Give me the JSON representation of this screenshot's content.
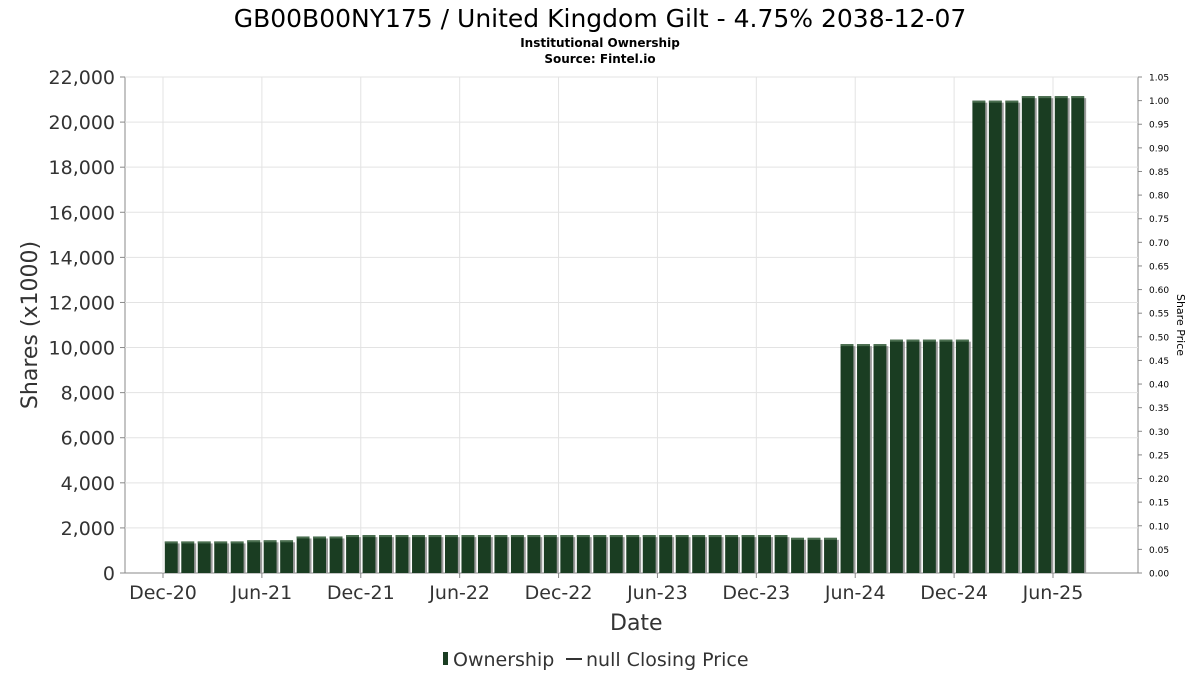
{
  "chart_data": {
    "type": "bar",
    "title": "GB00B00NY175 / United Kingdom Gilt - 4.75% 2038-12-07",
    "subtitle": "Institutional Ownership",
    "source": "Source: Fintel.io",
    "xlabel": "Date",
    "ylabel": "Shares (x1000)",
    "y2label": "Share Price",
    "ylim": [
      0,
      22000
    ],
    "y_ticks": [
      "0",
      "2,000",
      "4,000",
      "6,000",
      "8,000",
      "10,000",
      "12,000",
      "14,000",
      "16,000",
      "18,000",
      "20,000",
      "22,000"
    ],
    "y2lim": [
      0,
      1.05
    ],
    "y2_ticks": [
      "0.00",
      "0.05",
      "0.10",
      "0.15",
      "0.20",
      "0.25",
      "0.30",
      "0.35",
      "0.40",
      "0.45",
      "0.50",
      "0.55",
      "0.60",
      "0.65",
      "0.70",
      "0.75",
      "0.80",
      "0.85",
      "0.90",
      "0.95",
      "1.00",
      "1.05"
    ],
    "x_ticks": [
      "Dec-20",
      "Jun-21",
      "Dec-21",
      "Jun-22",
      "Dec-22",
      "Jun-23",
      "Dec-23",
      "Jun-24",
      "Dec-24",
      "Jun-25"
    ],
    "x_tick_month_index": [
      0,
      6,
      12,
      18,
      24,
      30,
      36,
      42,
      48,
      54
    ],
    "x_month_range": [
      0,
      58
    ],
    "bar_month_index": [
      0.5,
      1.5,
      2.5,
      3.5,
      4.5,
      5.5,
      6.5,
      7.5,
      8.5,
      9.5,
      10.5,
      11.5,
      12.5,
      13.5,
      14.5,
      15.5,
      16.5,
      17.5,
      18.5,
      19.5,
      20.5,
      21.5,
      22.5,
      23.5,
      24.5,
      25.5,
      26.5,
      27.5,
      28.5,
      29.5,
      30.5,
      31.5,
      32.5,
      33.5,
      34.5,
      35.5,
      36.5,
      37.5,
      38.5,
      39.5,
      40.5,
      41.5,
      42.5,
      43.5,
      44.5,
      45.5,
      46.5,
      47.5,
      48.5,
      49.5,
      50.5,
      51.5,
      52.5,
      53.5,
      54.5,
      55.5
    ],
    "series": [
      {
        "name": "Ownership",
        "color": "#1a3d22",
        "values": [
          1400,
          1400,
          1400,
          1400,
          1400,
          1450,
          1450,
          1450,
          1620,
          1620,
          1620,
          1680,
          1680,
          1680,
          1680,
          1680,
          1680,
          1680,
          1680,
          1680,
          1680,
          1680,
          1680,
          1680,
          1680,
          1680,
          1680,
          1680,
          1680,
          1680,
          1680,
          1680,
          1680,
          1680,
          1680,
          1680,
          1680,
          1680,
          1560,
          1560,
          1560,
          10150,
          10150,
          10150,
          10350,
          10350,
          10350,
          10350,
          10350,
          20950,
          20950,
          20950,
          21150,
          21150,
          21150,
          21150
        ]
      },
      {
        "name": "null Closing Price",
        "color": "#333333",
        "values": []
      }
    ],
    "legend": {
      "placement": "bottom-center",
      "ownership_label": "Ownership",
      "price_label": "null Closing Price"
    },
    "grid": true
  }
}
